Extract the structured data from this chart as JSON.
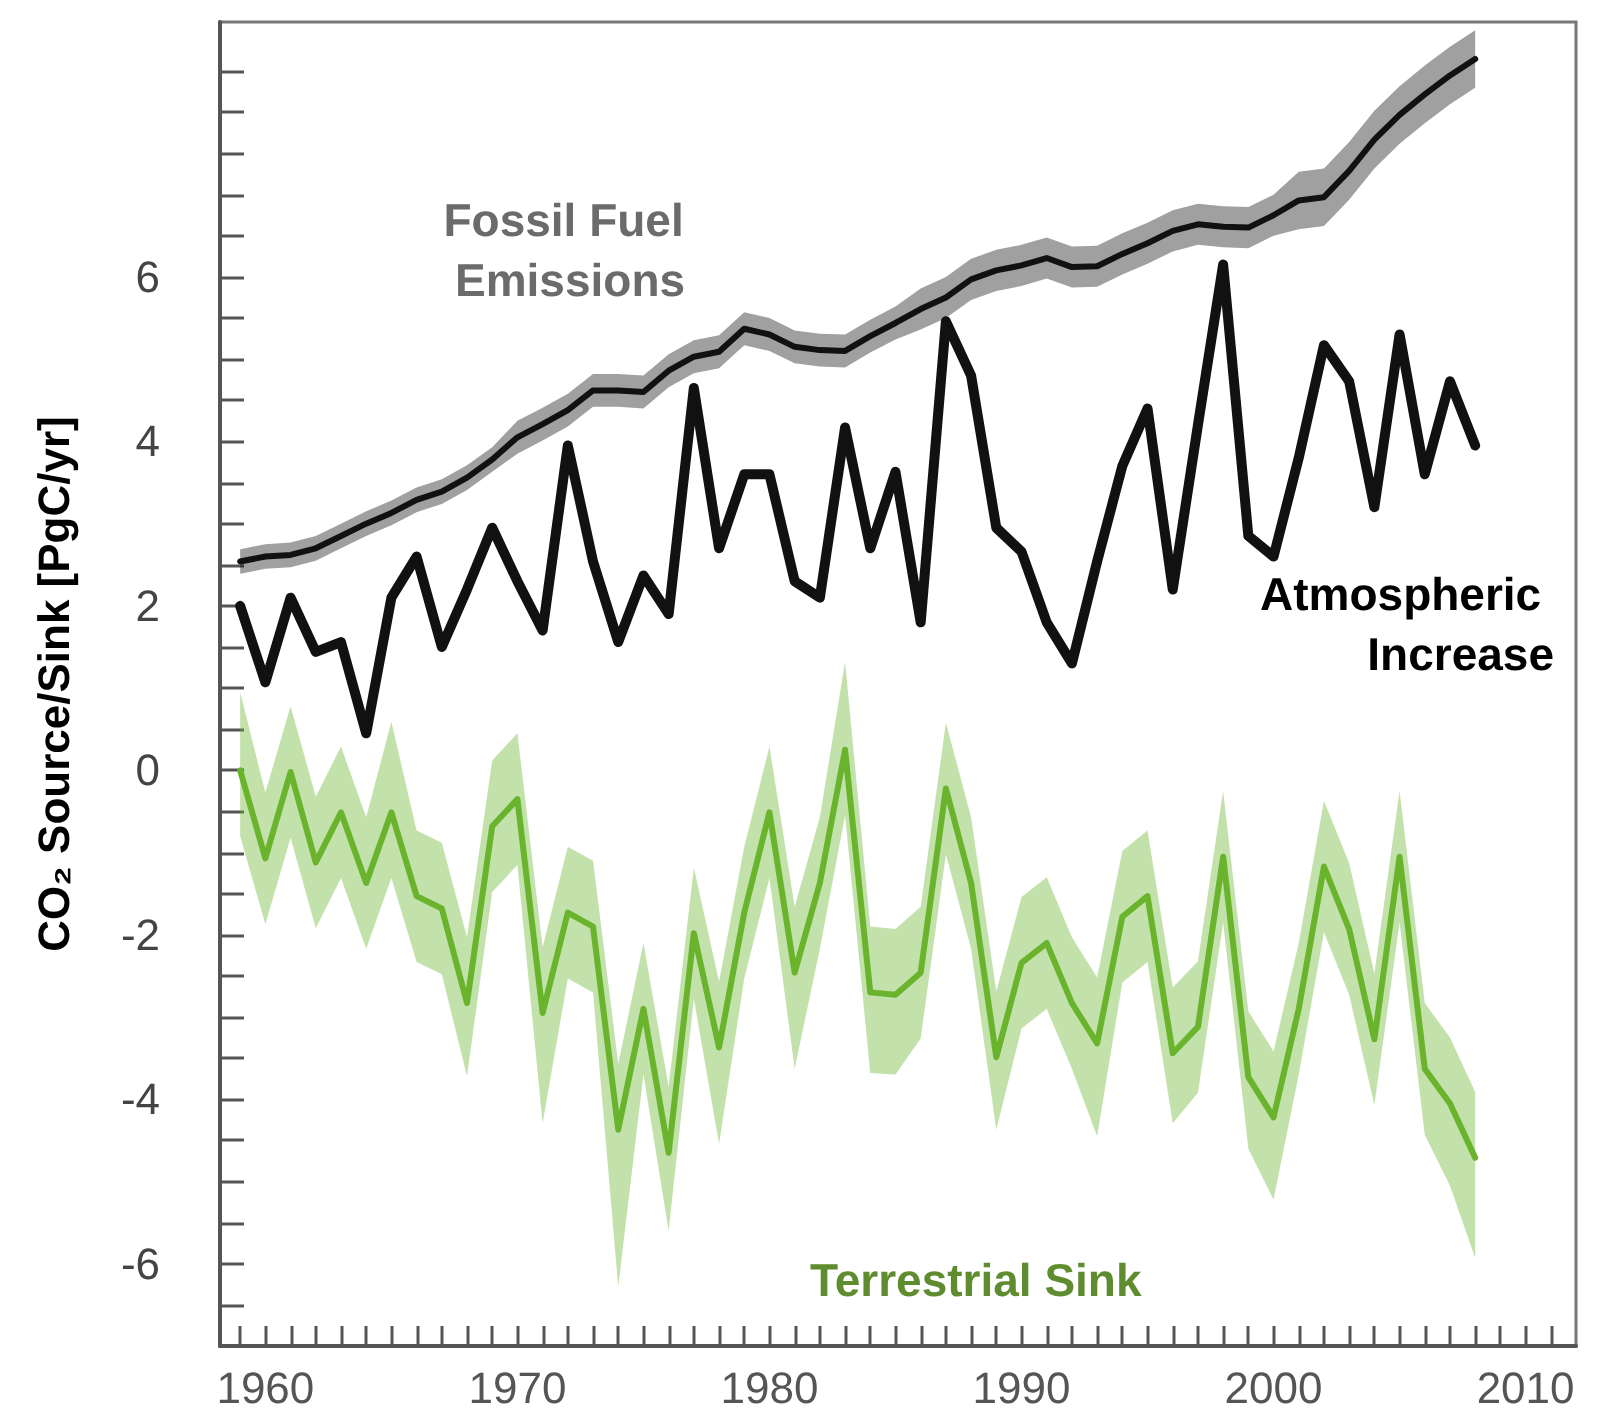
{
  "chart_data": {
    "type": "line",
    "ylabel": "CO₂ Source/Sink [PgC/yr]",
    "x": [
      1959,
      1960,
      1961,
      1962,
      1963,
      1964,
      1965,
      1966,
      1967,
      1968,
      1969,
      1970,
      1971,
      1972,
      1973,
      1974,
      1975,
      1976,
      1977,
      1978,
      1979,
      1980,
      1981,
      1982,
      1983,
      1984,
      1985,
      1986,
      1987,
      1988,
      1989,
      1990,
      1991,
      1992,
      1993,
      1994,
      1995,
      1996,
      1997,
      1998,
      1999,
      2000,
      2001,
      2002,
      2003,
      2004,
      2005,
      2006,
      2007,
      2008
    ],
    "series": [
      {
        "name": "Fossil Fuel Emissions",
        "color": "#111111",
        "values": [
          2.54,
          2.6,
          2.62,
          2.7,
          2.85,
          3.0,
          3.13,
          3.29,
          3.39,
          3.56,
          3.78,
          4.05,
          4.21,
          4.38,
          4.62,
          4.62,
          4.6,
          4.86,
          5.03,
          5.09,
          5.37,
          5.3,
          5.15,
          5.11,
          5.1,
          5.28,
          5.44,
          5.61,
          5.75,
          5.97,
          6.08,
          6.14,
          6.23,
          6.12,
          6.13,
          6.28,
          6.41,
          6.56,
          6.64,
          6.61,
          6.6,
          6.75,
          6.93,
          6.97,
          7.29,
          7.67,
          7.97,
          8.22,
          8.45,
          8.65
        ],
        "lower": [
          2.39,
          2.45,
          2.47,
          2.55,
          2.7,
          2.85,
          2.98,
          3.14,
          3.24,
          3.41,
          3.63,
          3.85,
          4.01,
          4.18,
          4.42,
          4.42,
          4.4,
          4.66,
          4.83,
          4.89,
          5.17,
          5.1,
          4.95,
          4.91,
          4.9,
          5.08,
          5.24,
          5.36,
          5.5,
          5.72,
          5.83,
          5.89,
          5.98,
          5.87,
          5.88,
          6.03,
          6.16,
          6.31,
          6.39,
          6.36,
          6.35,
          6.5,
          6.58,
          6.62,
          6.94,
          7.32,
          7.62,
          7.87,
          8.1,
          8.3
        ],
        "upper": [
          2.69,
          2.75,
          2.77,
          2.85,
          3.0,
          3.15,
          3.28,
          3.44,
          3.54,
          3.71,
          3.93,
          4.25,
          4.41,
          4.58,
          4.82,
          4.82,
          4.8,
          5.06,
          5.23,
          5.29,
          5.57,
          5.5,
          5.35,
          5.31,
          5.3,
          5.48,
          5.64,
          5.86,
          6.0,
          6.22,
          6.33,
          6.39,
          6.48,
          6.37,
          6.38,
          6.53,
          6.66,
          6.81,
          6.89,
          6.86,
          6.85,
          7.0,
          7.28,
          7.32,
          7.64,
          8.02,
          8.32,
          8.57,
          8.8,
          9.0
        ]
      },
      {
        "name": "Atmospheric Increase",
        "color": "#111111",
        "values": [
          2.0,
          1.07,
          2.1,
          1.44,
          1.56,
          0.45,
          2.1,
          2.6,
          1.5,
          2.2,
          2.95,
          2.3,
          1.7,
          3.95,
          2.54,
          1.56,
          2.37,
          1.9,
          4.65,
          2.7,
          3.6,
          3.6,
          2.3,
          2.1,
          4.17,
          2.7,
          3.63,
          1.8,
          5.46,
          4.8,
          2.95,
          2.66,
          1.8,
          1.3,
          2.54,
          3.7,
          4.4,
          2.2,
          4.2,
          6.15,
          2.85,
          2.6,
          3.8,
          5.17,
          4.73,
          3.2,
          5.3,
          3.6,
          4.73,
          3.95
        ]
      },
      {
        "name": "Terrestrial Sink",
        "color": "#6ab42d",
        "values": [
          0.0,
          -1.07,
          -0.02,
          -1.12,
          -0.51,
          -1.37,
          -0.51,
          -1.53,
          -1.68,
          -2.83,
          -0.68,
          -0.35,
          -2.95,
          -1.73,
          -1.9,
          -4.37,
          -2.9,
          -4.65,
          -1.98,
          -3.37,
          -1.73,
          -0.51,
          -2.46,
          -1.37,
          0.25,
          -2.7,
          -2.73,
          -2.46,
          -0.22,
          -1.37,
          -3.49,
          -2.34,
          -2.1,
          -2.83,
          -3.32,
          -1.78,
          -1.53,
          -3.44,
          -3.12,
          -1.05,
          -3.73,
          -4.22,
          -2.9,
          -1.17,
          -1.93,
          -3.27,
          -1.05,
          -3.63,
          -4.05,
          -4.71
        ],
        "lower": [
          -0.8,
          -1.87,
          -0.82,
          -1.92,
          -1.31,
          -2.17,
          -1.31,
          -2.33,
          -2.48,
          -3.72,
          -1.48,
          -1.15,
          -4.29,
          -2.53,
          -2.7,
          -6.28,
          -3.7,
          -5.6,
          -2.78,
          -4.54,
          -2.53,
          -1.31,
          -3.63,
          -2.17,
          -0.55,
          -3.68,
          -3.7,
          -3.26,
          -1.02,
          -2.17,
          -4.37,
          -3.14,
          -2.9,
          -3.63,
          -4.45,
          -2.58,
          -2.33,
          -4.29,
          -3.92,
          -1.85,
          -4.6,
          -5.22,
          -3.7,
          -1.97,
          -2.73,
          -4.07,
          -1.85,
          -4.43,
          -5.05,
          -5.93
        ],
        "upper": [
          0.95,
          -0.27,
          0.78,
          -0.32,
          0.29,
          -0.57,
          0.59,
          -0.73,
          -0.88,
          -2.03,
          0.12,
          0.45,
          -2.15,
          -0.93,
          -1.1,
          -3.57,
          -2.1,
          -3.85,
          -1.18,
          -2.57,
          -0.93,
          0.29,
          -1.66,
          -0.57,
          1.32,
          -1.9,
          -1.93,
          -1.66,
          0.58,
          -0.57,
          -2.69,
          -1.54,
          -1.3,
          -2.03,
          -2.52,
          -0.98,
          -0.73,
          -2.64,
          -2.32,
          -0.25,
          -2.93,
          -3.42,
          -2.1,
          -0.37,
          -1.13,
          -2.47,
          -0.25,
          -2.83,
          -3.25,
          -3.91
        ]
      }
    ],
    "xlim": [
      1958.2,
      2012
    ],
    "xticks": [
      {
        "value": 1959,
        "label": null
      },
      1960,
      {
        "value": 1961,
        "label": null
      },
      {
        "value": 1962,
        "label": null
      },
      {
        "value": 1963,
        "label": null
      },
      {
        "value": 1964,
        "label": null
      },
      {
        "value": 1965,
        "label": null
      },
      {
        "value": 1966,
        "label": null
      },
      {
        "value": 1967,
        "label": null
      },
      {
        "value": 1968,
        "label": null
      },
      {
        "value": 1969,
        "label": null
      },
      1970,
      {
        "value": 1971,
        "label": null
      },
      {
        "value": 1972,
        "label": null
      },
      {
        "value": 1973,
        "label": null
      },
      {
        "value": 1974,
        "label": null
      },
      {
        "value": 1975,
        "label": null
      },
      {
        "value": 1976,
        "label": null
      },
      {
        "value": 1977,
        "label": null
      },
      {
        "value": 1978,
        "label": null
      },
      {
        "value": 1979,
        "label": null
      },
      1980,
      {
        "value": 1981,
        "label": null
      },
      {
        "value": 1982,
        "label": null
      },
      {
        "value": 1983,
        "label": null
      },
      {
        "value": 1984,
        "label": null
      },
      {
        "value": 1985,
        "label": null
      },
      {
        "value": 1986,
        "label": null
      },
      {
        "value": 1987,
        "label": null
      },
      {
        "value": 1988,
        "label": null
      },
      {
        "value": 1989,
        "label": null
      },
      1990,
      {
        "value": 1991,
        "label": null
      },
      {
        "value": 1992,
        "label": null
      },
      {
        "value": 1993,
        "label": null
      },
      {
        "value": 1994,
        "label": null
      },
      {
        "value": 1995,
        "label": null
      },
      {
        "value": 1996,
        "label": null
      },
      {
        "value": 1997,
        "label": null
      },
      {
        "value": 1998,
        "label": null
      },
      {
        "value": 1999,
        "label": null
      },
      2000,
      {
        "value": 2001,
        "label": null
      },
      {
        "value": 2002,
        "label": null
      },
      {
        "value": 2003,
        "label": null
      },
      {
        "value": 2004,
        "label": null
      },
      {
        "value": 2005,
        "label": null
      },
      {
        "value": 2006,
        "label": null
      },
      {
        "value": 2007,
        "label": null
      },
      {
        "value": 2008,
        "label": null
      },
      {
        "value": 2009,
        "label": null
      },
      2010,
      {
        "value": 2011,
        "label": null
      }
    ],
    "ylim": [
      -7,
      9.1
    ],
    "yticks": [
      {
        "value": -6.5,
        "label": null
      },
      -6,
      {
        "value": -5.5,
        "label": null
      },
      {
        "value": -5,
        "label": null
      },
      {
        "value": -4.5,
        "label": null
      },
      -4,
      {
        "value": -3.5,
        "label": null
      },
      {
        "value": -3,
        "label": null
      },
      {
        "value": -2.5,
        "label": null
      },
      -2,
      {
        "value": -1.5,
        "label": null
      },
      {
        "value": -1,
        "label": null
      },
      {
        "value": -0.5,
        "label": null
      },
      0,
      {
        "value": 0.5,
        "label": null
      },
      {
        "value": 1,
        "label": null
      },
      {
        "value": 1.5,
        "label": null
      },
      2,
      {
        "value": 2.5,
        "label": null
      },
      {
        "value": 3,
        "label": null
      },
      {
        "value": 3.5,
        "label": null
      },
      4,
      {
        "value": 4.5,
        "label": null
      },
      {
        "value": 5,
        "label": null
      },
      {
        "value": 5.5,
        "label": null
      },
      6,
      {
        "value": 6.5,
        "label": null
      },
      {
        "value": 7,
        "label": null
      },
      {
        "value": 7.5,
        "label": null
      },
      {
        "value": 8,
        "label": null
      },
      {
        "value": 8.5,
        "label": null
      }
    ],
    "grid": false,
    "legend": false,
    "marker": "none",
    "line_style": "solid"
  }
}
